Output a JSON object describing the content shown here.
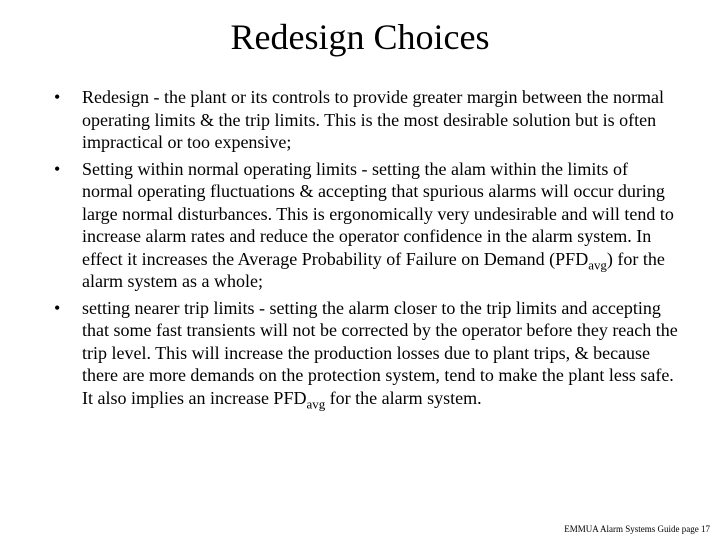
{
  "title": "Redesign Choices",
  "bullets": [
    {
      "pre": "Redesign - the plant or its controls to provide greater margin between the normal operating limits & the trip limits.  This is the most desirable solution but is often impractical or too expensive;",
      "sub": "",
      "post": ""
    },
    {
      "pre": "Setting within normal operating limits - setting the alam within the limits of normal operating fluctuations & accepting that spurious alarms will occur during large normal disturbances.  This is ergonomically very undesirable and will tend to increase alarm rates and reduce the operator confidence in the alarm system.  In effect it increases the Average Probability of Failure on Demand (PFD",
      "sub": "avg",
      "post": ") for the alarm system as a whole;"
    },
    {
      "pre": "setting nearer trip limits - setting the alarm closer to the trip limits and accepting that some fast transients will not be corrected by the operator before they reach the trip level.  This will increase the production losses due to plant trips, & because there are more demands on the protection system, tend to make the plant less safe. It also implies an increase PFD",
      "sub": "avg",
      "post": " for the alarm system."
    }
  ],
  "footer": "EMMUA Alarm Systems Guide page 17"
}
